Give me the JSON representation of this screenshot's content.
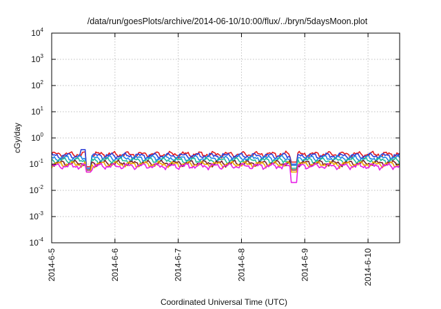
{
  "chart_data": {
    "type": "line",
    "title": "/data/run/goesPlots/archive/2014-06-10/10:00/flux/../bryn/5daysMoon.plot",
    "xlabel": "Coordinated Universal Time (UTC)",
    "ylabel": "cGy/day",
    "y_scale": "log",
    "ylim": [
      0.0001,
      10000
    ],
    "xlim": [
      "2014-06-05T00:00",
      "2014-06-10T12:00"
    ],
    "grid": true,
    "legend": "none",
    "x_ticks": [
      "2014-6-5",
      "2014-6-6",
      "2014-6-7",
      "2014-6-8",
      "2014-6-9",
      "2014-6-10"
    ],
    "y_ticks": [
      {
        "base": "10",
        "exp": "-4",
        "value": 0.0001
      },
      {
        "base": "10",
        "exp": "-3",
        "value": 0.001
      },
      {
        "base": "10",
        "exp": "-2",
        "value": 0.01
      },
      {
        "base": "10",
        "exp": "-1",
        "value": 0.1
      },
      {
        "base": "10",
        "exp": "0",
        "value": 1
      },
      {
        "base": "10",
        "exp": "1",
        "value": 10
      },
      {
        "base": "10",
        "exp": "2",
        "value": 100
      },
      {
        "base": "10",
        "exp": "3",
        "value": 1000
      },
      {
        "base": "10",
        "exp": "4",
        "value": 10000
      }
    ],
    "series": [
      {
        "color": "#e41a1c",
        "baseline": 0.24,
        "dips": [
          [
            "2014-06-05T14:00",
            0.08
          ],
          [
            "2014-06-08T20:00",
            0.12
          ]
        ]
      },
      {
        "color": "#2f3fd8",
        "baseline": 0.21,
        "dips": [
          [
            "2014-06-05T14:00",
            0.07
          ],
          [
            "2014-06-05T12:00",
            0.36
          ],
          [
            "2014-06-08T20:00",
            0.1
          ]
        ]
      },
      {
        "color": "#1e88e5",
        "baseline": 0.17,
        "dips": [
          [
            "2014-06-05T14:00",
            0.07
          ],
          [
            "2014-06-08T20:00",
            0.09
          ]
        ]
      },
      {
        "color": "#1fb89a",
        "baseline": 0.14,
        "dips": [
          [
            "2014-06-05T14:00",
            0.06
          ],
          [
            "2014-06-08T20:00",
            0.07
          ]
        ]
      },
      {
        "color": "#7a1f2b",
        "baseline": 0.11,
        "dips": [
          [
            "2014-06-05T14:00",
            0.06
          ],
          [
            "2014-06-08T20:00",
            0.06
          ]
        ]
      },
      {
        "color": "#f2a900",
        "baseline": 0.1,
        "dips": [
          [
            "2014-06-05T14:00",
            0.05
          ],
          [
            "2014-06-08T20:00",
            0.05
          ]
        ]
      },
      {
        "color": "#e61ee6",
        "baseline": 0.085,
        "dips": [
          [
            "2014-06-05T14:00",
            0.05
          ],
          [
            "2014-06-08T20:00",
            0.02
          ]
        ]
      }
    ]
  }
}
